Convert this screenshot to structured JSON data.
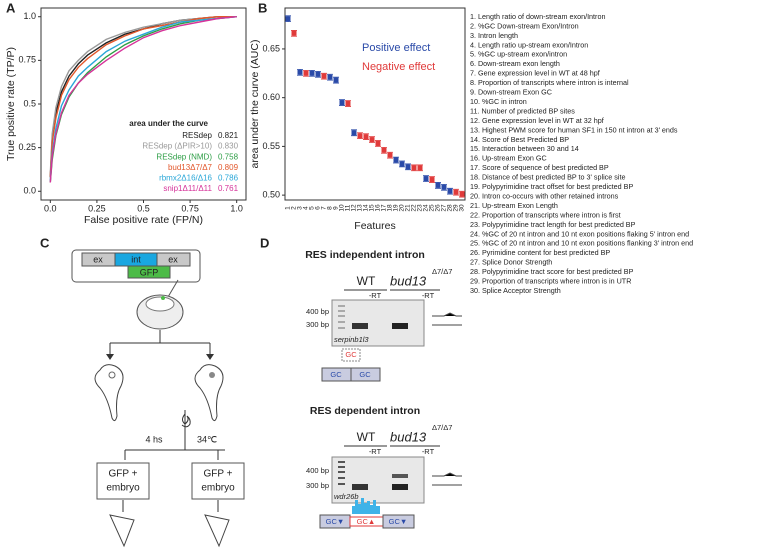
{
  "panel_labels": [
    "A",
    "B",
    "C",
    "D"
  ],
  "chart_data": [
    {
      "type": "line",
      "xlabel": "False positive rate (FP/N)",
      "ylabel": "True positive rate (TP/P)",
      "xlim": [
        -0.05,
        1.05
      ],
      "ylim": [
        -0.05,
        1.05
      ],
      "xticks": [
        {
          "value": 0,
          "label": "0.0"
        },
        0.25,
        {
          "value": 0.5,
          "label": "0.5"
        },
        0.75,
        {
          "value": 1,
          "label": "1.0"
        }
      ],
      "yticks": [
        {
          "value": 0,
          "label": "0.0"
        },
        0.25,
        {
          "value": 0.5,
          "label": "0.5"
        },
        0.75,
        {
          "value": 1,
          "label": "1.0"
        }
      ],
      "legend_title": "area under the curve",
      "x": [
        0,
        0.01,
        0.03,
        0.06,
        0.1,
        0.15,
        0.2,
        0.3,
        0.4,
        0.5,
        0.6,
        0.7,
        0.8,
        0.9,
        1.0
      ],
      "series": [
        {
          "name": "RESdep",
          "auc": "0.821",
          "color": "#222222",
          "values": [
            0.08,
            0.3,
            0.45,
            0.57,
            0.66,
            0.73,
            0.78,
            0.85,
            0.9,
            0.93,
            0.96,
            0.98,
            0.99,
            1,
            1
          ]
        },
        {
          "name": "RESdep (ΔPIR>10)",
          "auc": "0.830",
          "color": "#9a9a9a",
          "values": [
            0.1,
            0.33,
            0.48,
            0.6,
            0.69,
            0.75,
            0.8,
            0.87,
            0.91,
            0.94,
            0.96,
            0.98,
            0.99,
            1,
            1
          ]
        },
        {
          "name": "RESdep (NMD)",
          "auc": "0.758",
          "color": "#2e9e46",
          "values": [
            0.05,
            0.18,
            0.32,
            0.44,
            0.54,
            0.62,
            0.68,
            0.77,
            0.84,
            0.89,
            0.93,
            0.96,
            0.98,
            0.99,
            1
          ]
        },
        {
          "name": "bud13Δ7/Δ7",
          "auc": "0.809",
          "color": "#e2572b",
          "values": [
            0.08,
            0.28,
            0.42,
            0.55,
            0.64,
            0.71,
            0.76,
            0.84,
            0.89,
            0.93,
            0.95,
            0.97,
            0.99,
            1,
            1
          ]
        },
        {
          "name": "rbmx2Δ16/Δ16",
          "auc": "0.786",
          "color": "#2aa7d8",
          "values": [
            0.06,
            0.22,
            0.36,
            0.49,
            0.58,
            0.66,
            0.71,
            0.8,
            0.86,
            0.9,
            0.94,
            0.97,
            0.98,
            0.99,
            1
          ]
        },
        {
          "name": "snip1Δ11/Δ11",
          "auc": "0.761",
          "color": "#d6339a",
          "values": [
            0.05,
            0.2,
            0.33,
            0.45,
            0.55,
            0.62,
            0.67,
            0.75,
            0.82,
            0.88,
            0.92,
            0.95,
            0.97,
            0.99,
            1
          ]
        }
      ]
    },
    {
      "type": "errorbar",
      "xlabel": "Features",
      "ylabel": "area under the curve (AUC)",
      "ylim": [
        0.495,
        0.692
      ],
      "yticks": [
        {
          "value": 0.5,
          "label": "0.50"
        },
        0.55,
        {
          "value": 0.6,
          "label": "0.60"
        },
        0.65
      ],
      "categories": [
        "1",
        "2",
        "3",
        "4",
        "5",
        "6",
        "7",
        "8",
        "9",
        "10",
        "11",
        "12",
        "13",
        "14",
        "15",
        "16",
        "17",
        "18",
        "19",
        "20",
        "21",
        "22",
        "23",
        "24",
        "25",
        "26",
        "27",
        "28",
        "29",
        "30"
      ],
      "series": [
        {
          "name": "Positive effect",
          "color": "#2a4aa8",
          "values": [
            0.681,
            null,
            0.626,
            null,
            0.625,
            0.624,
            null,
            0.621,
            0.618,
            0.595,
            null,
            0.564,
            null,
            null,
            null,
            null,
            null,
            null,
            0.536,
            0.532,
            0.529,
            null,
            null,
            0.517,
            null,
            0.51,
            0.508,
            0.504,
            null,
            null
          ],
          "errors": [
            0.003,
            null,
            0.003,
            null,
            0.003,
            0.003,
            null,
            0.003,
            0.003,
            0.003,
            null,
            0.003,
            null,
            null,
            null,
            null,
            null,
            null,
            0.003,
            0.003,
            0.003,
            null,
            null,
            0.003,
            null,
            0.003,
            0.003,
            0.003,
            null,
            null
          ]
        },
        {
          "name": "Negative effect",
          "color": "#e03a3a",
          "values": [
            null,
            0.666,
            null,
            0.625,
            null,
            null,
            0.622,
            null,
            null,
            null,
            0.594,
            null,
            0.561,
            0.56,
            0.557,
            0.553,
            0.546,
            0.541,
            null,
            null,
            null,
            0.528,
            0.528,
            null,
            0.516,
            null,
            null,
            null,
            0.503,
            0.501
          ],
          "errors": [
            null,
            0.003,
            null,
            0.003,
            null,
            null,
            0.003,
            null,
            null,
            null,
            0.003,
            null,
            0.003,
            0.003,
            0.003,
            0.003,
            0.003,
            0.003,
            null,
            null,
            null,
            0.003,
            0.003,
            null,
            0.003,
            null,
            null,
            null,
            0.003,
            0.003
          ]
        }
      ]
    }
  ],
  "features": [
    "1. Length ratio of down-stream exon/Intron",
    "2. %GC Down-stream Exon/Intron",
    "3. Intron length",
    "4. Length ratio up-stream exon/Intron",
    "5. %GC up-stream exon/intron",
    "6. Down-stream exon length",
    "7. Gene expression level in WT at 48 hpf",
    "8. Proportion of transcripts where intron is internal",
    "9. Down-stream Exon GC",
    "10. %GC in intron",
    "11. Number of predicted BP sites",
    "12. Gene expression level in WT at 32 hpf",
    "13. Highest PWM score for human SF1 in 150 nt intron at 3' ends",
    "14. Score of Best Predicted BP",
    "15. Interaction between 30 and 14",
    "16. Up-stream Exon GC",
    "17. Score of sequence of best predicted BP",
    "18. Distance of best predicted BP to 3' splice site",
    "19. Polypyrimidine tract offset for best predicted BP",
    "20. Intron co-occurs with other retained introns",
    "21. Up-stream Exon Length",
    "22. Proportion of transcripts where intron is first",
    "23. Polypyrimidine tract length for best predicted BP",
    "24. %GC of 20 nt intron and 10 nt exon positions flaking 5' intron end",
    "25. %GC of 20 nt intron and 10 nt exon positions flanking 3' intron end",
    "26. Pyrimidine content for best predicted BP",
    "27. Splice Donor Strength",
    "28. Polypyrimidine tract score for best predicted BP",
    "29. Proportion of transcripts where intron is in UTR",
    "30. Splice Acceptor Strength"
  ],
  "panel_c": {
    "construct": [
      "ex",
      "int",
      "ex"
    ],
    "reporter": "GFP",
    "time": "4 hs",
    "temperature": "34℃",
    "results": [
      "GFP +",
      "embryo",
      "GFP +",
      "embryo"
    ]
  },
  "panel_d": {
    "independent": {
      "title": "RES independent intron",
      "wt": "WT",
      "mutant": "bud13",
      "mutant_sup": "Δ7/Δ7",
      "minus_rt": [
        "-RT",
        "-RT"
      ],
      "ladder": [
        "400 bp",
        "300 bp"
      ],
      "gene": "serpinb1l3",
      "motifs": [
        "GC",
        "GC",
        "GC"
      ]
    },
    "dependent": {
      "title": "RES dependent intron",
      "wt": "WT",
      "mutant": "bud13",
      "mutant_sup": "Δ7/Δ7",
      "minus_rt": [
        "-RT",
        "-RT"
      ],
      "ladder": [
        "400 bp",
        "300 bp"
      ],
      "gene": "wdr26b",
      "motifs": [
        "GC▼",
        "GC▲",
        "GC▼"
      ]
    }
  }
}
